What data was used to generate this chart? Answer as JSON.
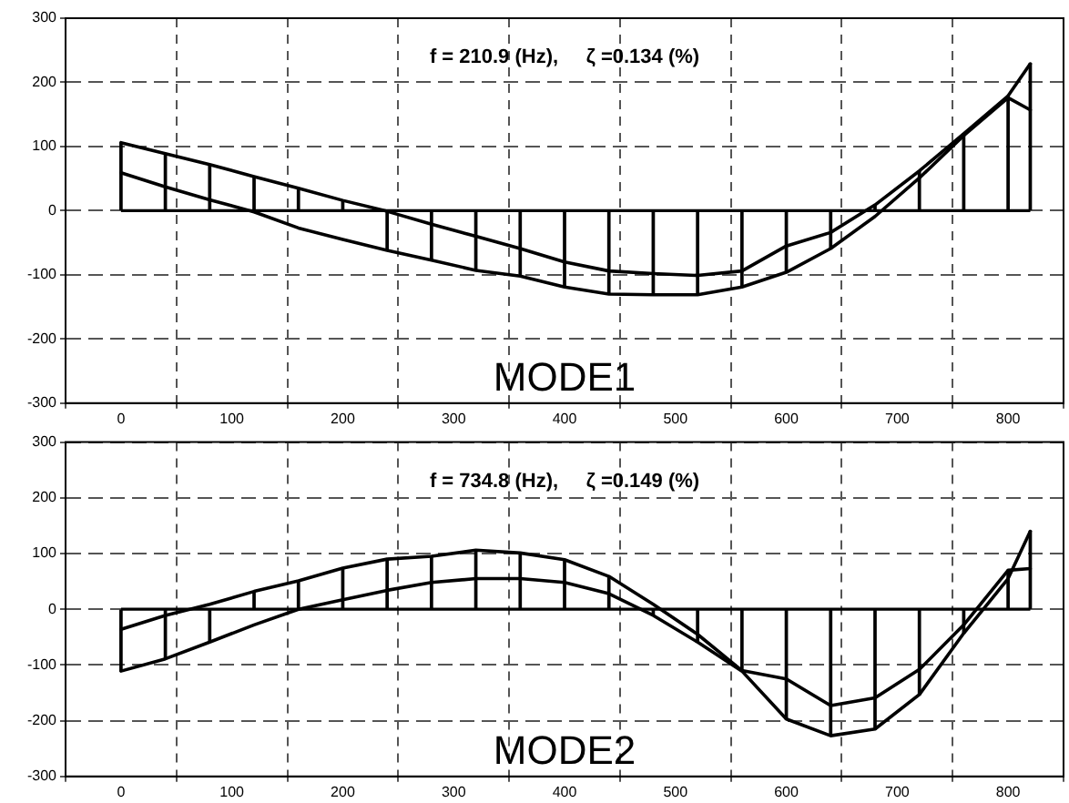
{
  "chart_data": [
    {
      "type": "line",
      "x": [
        0,
        40,
        80,
        120,
        160,
        200,
        240,
        280,
        320,
        360,
        400,
        440,
        480,
        520,
        560,
        600,
        640,
        680,
        720,
        760,
        800,
        820
      ],
      "series": [
        {
          "type": "bar",
          "color": "#000000",
          "values": [
            106,
            89,
            72,
            53,
            35,
            16,
            -62,
            -77,
            -93,
            -102,
            -119,
            -130,
            -131,
            -131,
            -119,
            -96,
            -59,
            9,
            62,
            120,
            179,
            229
          ]
        },
        {
          "color": "#000000",
          "values": [
            106,
            89,
            72,
            53,
            35,
            16,
            -1,
            -21,
            -40,
            -59,
            -80,
            -94,
            -98,
            -101,
            -94,
            -55,
            -34,
            9,
            62,
            120,
            179,
            229
          ]
        },
        {
          "color": "#000000",
          "values": [
            59,
            37,
            17,
            -2,
            -27,
            -45,
            -62,
            -77,
            -93,
            -102,
            -119,
            -130,
            -131,
            -131,
            -119,
            -96,
            -59,
            -9,
            51,
            117,
            176,
            157
          ]
        }
      ],
      "xlim": [
        -50,
        850
      ],
      "ylim": [
        -300,
        300
      ],
      "xticks": [
        0,
        100,
        200,
        300,
        400,
        500,
        600,
        700,
        800
      ],
      "yticks": [
        -300,
        -200,
        -100,
        0,
        100,
        200,
        300
      ],
      "grid": true,
      "legend": false,
      "marker": "none",
      "line_style": "solid",
      "annotations": [
        "f = 210.9 (Hz),     ζ =0.134 (%)",
        "MODE1"
      ]
    },
    {
      "type": "line",
      "x": [
        0,
        40,
        80,
        120,
        160,
        200,
        240,
        280,
        320,
        360,
        400,
        440,
        480,
        520,
        560,
        600,
        640,
        680,
        720,
        760,
        800,
        820
      ],
      "series": [
        {
          "type": "bar",
          "color": "#000000",
          "values": [
            -111,
            -89,
            -59,
            32,
            51,
            74,
            90,
            95,
            106,
            101,
            89,
            59,
            -11,
            -59,
            -111,
            -197,
            -227,
            -215,
            -153,
            -43,
            70,
            140
          ]
        },
        {
          "color": "#000000",
          "values": [
            -111,
            -89,
            -59,
            -28,
            0,
            17,
            34,
            48,
            55,
            55,
            48,
            28,
            -11,
            -59,
            -111,
            -197,
            -227,
            -215,
            -153,
            -43,
            55,
            140
          ]
        },
        {
          "color": "#000000",
          "values": [
            -36,
            -11,
            9,
            32,
            51,
            74,
            90,
            95,
            106,
            101,
            89,
            59,
            9,
            -45,
            -110,
            -125,
            -173,
            -159,
            -108,
            -28,
            70,
            73
          ]
        }
      ],
      "xlim": [
        -50,
        850
      ],
      "ylim": [
        -300,
        300
      ],
      "xticks": [
        0,
        100,
        200,
        300,
        400,
        500,
        600,
        700,
        800
      ],
      "yticks": [
        -300,
        -200,
        -100,
        0,
        100,
        200,
        300
      ],
      "grid": true,
      "legend": false,
      "marker": "none",
      "line_style": "solid",
      "annotations": [
        "f = 734.8 (Hz),     ζ =0.149 (%)",
        "MODE2"
      ]
    }
  ]
}
